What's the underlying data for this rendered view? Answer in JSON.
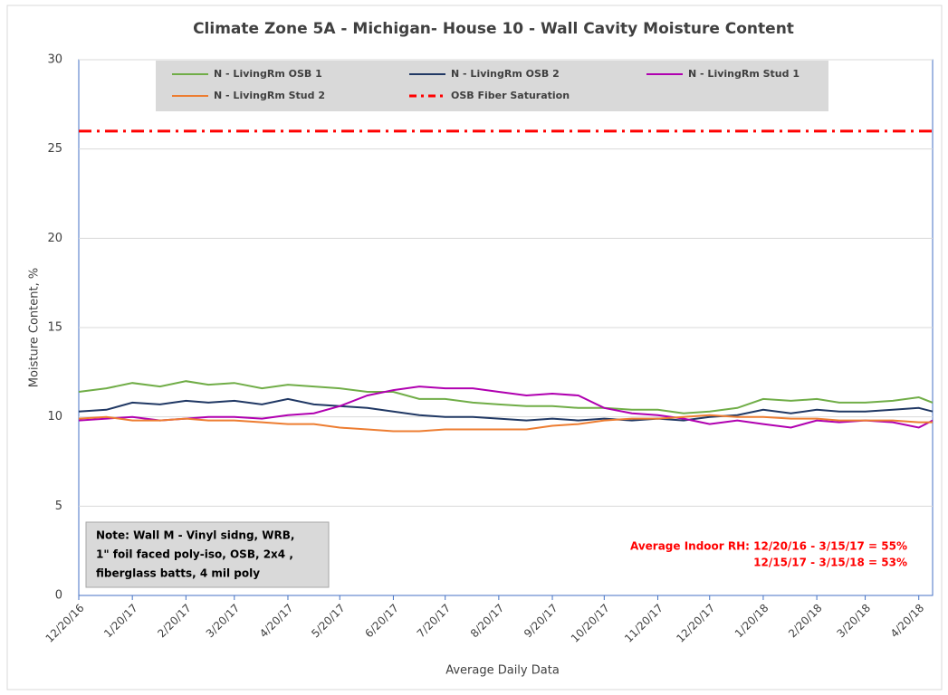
{
  "chart_data": {
    "type": "line",
    "title": "Climate Zone 5A - Michigan- House 10 - Wall Cavity Moisture Content",
    "x_label": "Average Daily Data",
    "y_label": "Moisture Content, %",
    "x": [
      "12/20/16",
      "1/5/17",
      "1/20/17",
      "2/5/17",
      "2/20/17",
      "3/5/17",
      "3/20/17",
      "4/5/17",
      "4/20/17",
      "5/5/17",
      "5/20/17",
      "6/5/17",
      "6/20/17",
      "7/5/17",
      "7/20/17",
      "8/5/17",
      "8/20/17",
      "9/5/17",
      "9/20/17",
      "10/5/17",
      "10/20/17",
      "11/5/17",
      "11/20/17",
      "12/5/17",
      "12/20/17",
      "1/5/18",
      "1/20/18",
      "2/5/18",
      "2/20/18",
      "3/5/18",
      "3/20/18",
      "4/5/18",
      "4/20/18",
      "4/28/18"
    ],
    "series": [
      {
        "name": "N - LivingRm OSB 1",
        "color": "#70ad47",
        "values": [
          11.4,
          11.6,
          11.9,
          11.7,
          12.0,
          11.8,
          11.9,
          11.6,
          11.8,
          11.7,
          11.6,
          11.4,
          11.4,
          11.0,
          11.0,
          10.8,
          10.7,
          10.6,
          10.6,
          10.5,
          10.5,
          10.4,
          10.4,
          10.2,
          10.3,
          10.5,
          11.0,
          10.9,
          11.0,
          10.8,
          10.8,
          10.9,
          11.1,
          10.8
        ]
      },
      {
        "name": "N - LivingRm OSB 2",
        "color": "#203864",
        "values": [
          10.3,
          10.4,
          10.8,
          10.7,
          10.9,
          10.8,
          10.9,
          10.7,
          11.0,
          10.7,
          10.6,
          10.5,
          10.3,
          10.1,
          10.0,
          10.0,
          9.9,
          9.8,
          9.9,
          9.8,
          9.9,
          9.8,
          9.9,
          9.8,
          10.0,
          10.1,
          10.4,
          10.2,
          10.4,
          10.3,
          10.3,
          10.4,
          10.5,
          10.3
        ]
      },
      {
        "name": "N - LivingRm Stud 1",
        "color": "#b000b0",
        "values": [
          9.8,
          9.9,
          10.0,
          9.8,
          9.9,
          10.0,
          10.0,
          9.9,
          10.1,
          10.2,
          10.6,
          11.2,
          11.5,
          11.7,
          11.6,
          11.6,
          11.4,
          11.2,
          11.3,
          11.2,
          10.5,
          10.2,
          10.1,
          9.9,
          9.6,
          9.8,
          9.6,
          9.4,
          9.8,
          9.7,
          9.8,
          9.7,
          9.4,
          9.8
        ]
      },
      {
        "name": "N - LivingRm Stud 2",
        "color": "#ed7d31",
        "values": [
          9.9,
          10.0,
          9.8,
          9.8,
          9.9,
          9.8,
          9.8,
          9.7,
          9.6,
          9.6,
          9.4,
          9.3,
          9.2,
          9.2,
          9.3,
          9.3,
          9.3,
          9.3,
          9.5,
          9.6,
          9.8,
          9.9,
          9.9,
          10.0,
          10.1,
          10.0,
          10.0,
          9.9,
          9.9,
          9.8,
          9.8,
          9.8,
          9.7,
          9.7
        ]
      }
    ],
    "reference_lines": [
      {
        "name": "OSB Fiber Saturation",
        "color": "#ff0000",
        "value": 26,
        "style": "dash-dot"
      }
    ],
    "xlim": [
      "12/20/16",
      "4/28/18"
    ],
    "xticks": [
      "12/20/16",
      "1/20/17",
      "2/20/17",
      "3/20/17",
      "4/20/17",
      "5/20/17",
      "6/20/17",
      "7/20/17",
      "8/20/17",
      "9/20/17",
      "10/20/17",
      "11/20/17",
      "12/20/17",
      "1/20/18",
      "2/20/18",
      "3/20/18",
      "4/20/18"
    ],
    "ylim": [
      0,
      30
    ],
    "yticks": [
      0,
      5,
      10,
      15,
      20,
      25,
      30
    ],
    "grid": true,
    "legend_position": "top",
    "annotations": {
      "note": [
        "Note: Wall M - Vinyl sidng, WRB,",
        "1\" foil faced poly-iso, OSB, 2x4 ,",
        "fiberglass batts, 4 mil poly"
      ],
      "rh": [
        "Average Indoor RH: 12/20/16 - 3/15/17 = 55%",
        "12/15/17 - 3/15/18 = 53%"
      ]
    }
  }
}
